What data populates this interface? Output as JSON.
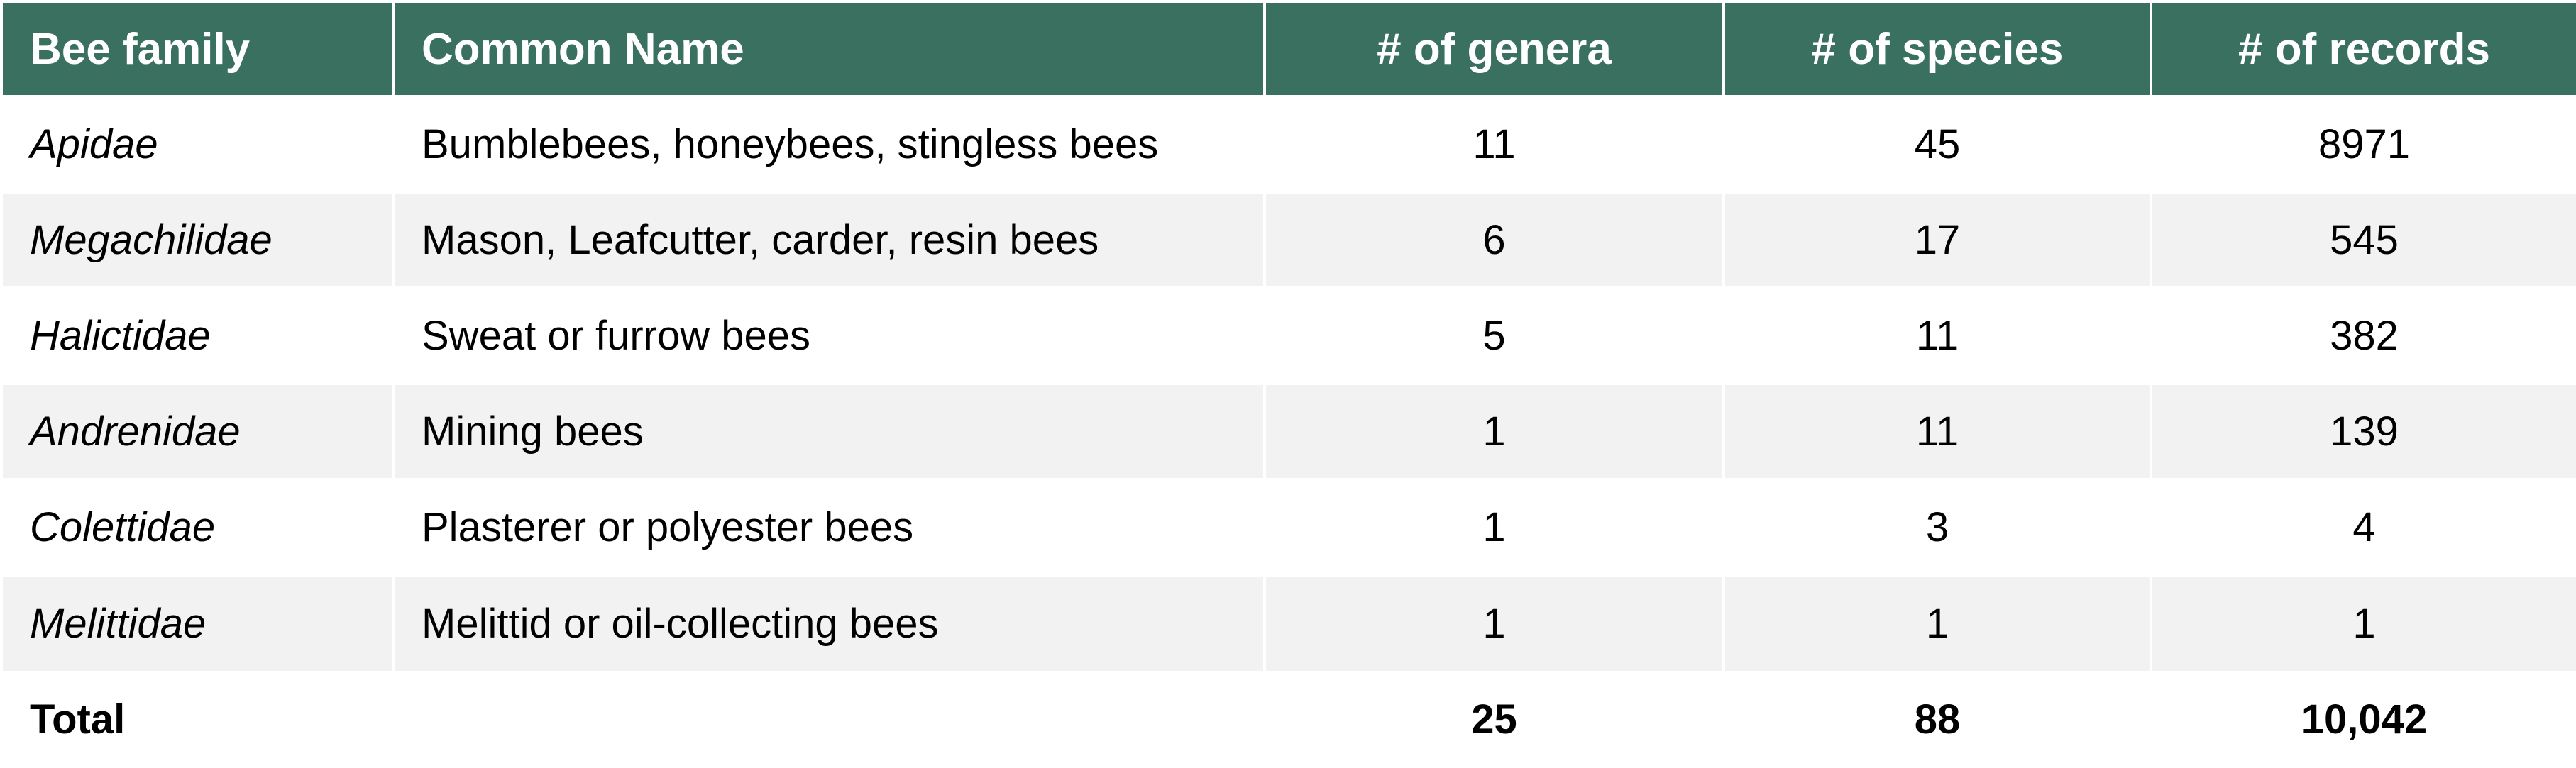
{
  "table": {
    "headers": [
      "Bee family",
      "Common Name",
      "# of genera",
      "# of species",
      "# of records"
    ],
    "rows": [
      {
        "family": "Apidae",
        "common_name": "Bumblebees, honeybees, stingless bees",
        "genera": "11",
        "species": "45",
        "records": "8971"
      },
      {
        "family": "Megachilidae",
        "common_name": "Mason, Leafcutter, carder, resin bees",
        "genera": "6",
        "species": "17",
        "records": "545"
      },
      {
        "family": "Halictidae",
        "common_name": "Sweat or furrow bees",
        "genera": "5",
        "species": "11",
        "records": "382"
      },
      {
        "family": "Andrenidae",
        "common_name": "Mining bees",
        "genera": "1",
        "species": "11",
        "records": "139"
      },
      {
        "family": "Colettidae",
        "common_name": "Plasterer or polyester bees",
        "genera": "1",
        "species": "3",
        "records": "4"
      },
      {
        "family": "Melittidae",
        "common_name": "Melittid or oil-collecting bees",
        "genera": "1",
        "species": "1",
        "records": "1"
      }
    ],
    "total": {
      "label": "Total",
      "common_name": "",
      "genera": "25",
      "species": "88",
      "records": "10,042"
    }
  },
  "colors": {
    "header_bg": "#3a7060",
    "header_text": "#ffffff",
    "stripe": "#f2f2f2"
  }
}
